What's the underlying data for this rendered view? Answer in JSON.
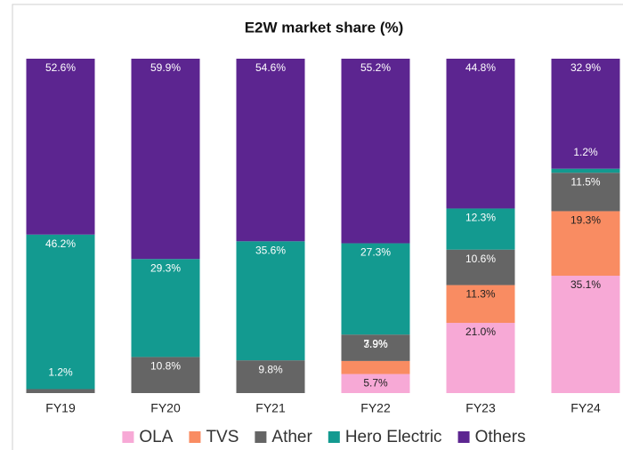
{
  "chart_data": {
    "type": "stacked_bar",
    "title": "E2W market share (%)",
    "categories": [
      "FY19",
      "FY20",
      "FY21",
      "FY22",
      "FY23",
      "FY24"
    ],
    "ylim": [
      0,
      100
    ],
    "series": [
      {
        "name": "OLA",
        "color": "#f7a9d6",
        "values": [
          null,
          null,
          null,
          5.7,
          21.0,
          35.1
        ],
        "value_labels": [
          null,
          null,
          null,
          "5.7%",
          "21.0%",
          "35.1%"
        ]
      },
      {
        "name": "TVS",
        "color": "#f98c62",
        "values": [
          null,
          null,
          null,
          3.9,
          11.3,
          19.3
        ],
        "value_labels": [
          null,
          null,
          null,
          "3.9%",
          "11.3%",
          "19.3%"
        ]
      },
      {
        "name": "Ather",
        "color": "#656565",
        "values": [
          1.2,
          10.8,
          9.8,
          7.9,
          10.6,
          11.5
        ],
        "value_labels": [
          "1.2%",
          "10.8%",
          "9.8%",
          "7.9%",
          "10.6%",
          "11.5%"
        ]
      },
      {
        "name": "Hero Electric",
        "color": "#139a90",
        "values": [
          46.2,
          29.3,
          35.6,
          27.3,
          12.3,
          1.2
        ],
        "value_labels": [
          "46.2%",
          "29.3%",
          "35.6%",
          "27.3%",
          "12.3%",
          "1.2%"
        ]
      },
      {
        "name": "Others",
        "color": "#5c2590",
        "values": [
          52.6,
          59.9,
          54.6,
          55.2,
          44.8,
          32.9
        ],
        "value_labels": [
          "52.6%",
          "59.9%",
          "54.6%",
          "55.2%",
          "44.8%",
          "32.9%"
        ]
      }
    ]
  }
}
